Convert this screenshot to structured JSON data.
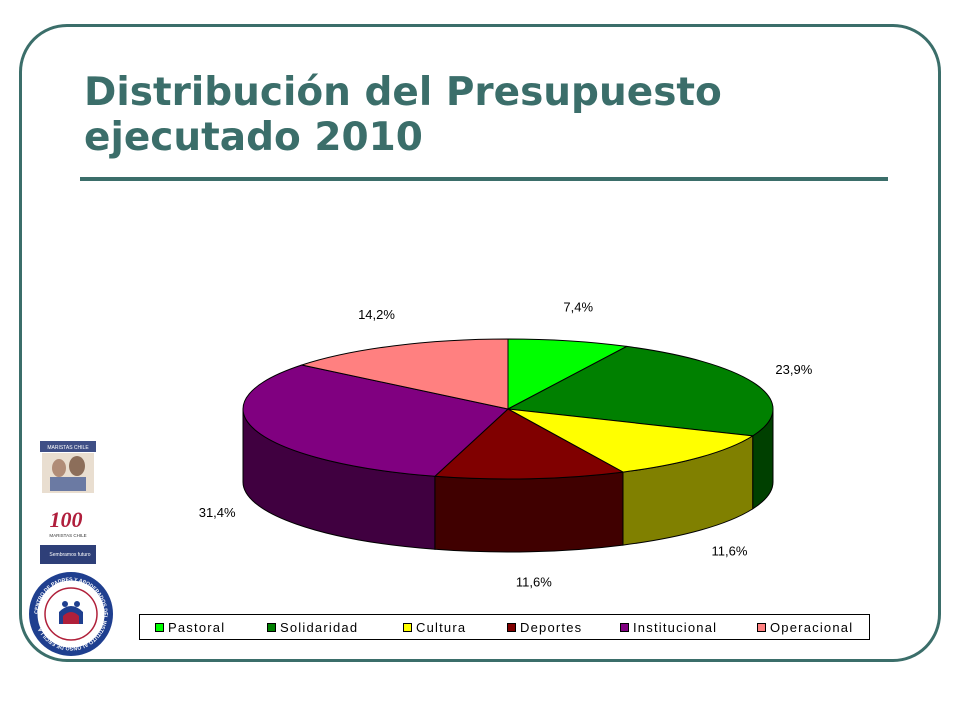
{
  "slide": {
    "title": "Distribución del Presupuesto\nejecutado 2010",
    "logo_text": [
      "MARISTAS CHILE",
      "100",
      "MARISTAS CHILE",
      "Sembramos futuro"
    ],
    "seal_text": "CENTRO DE PADRES Y APODERADOS DEL INSTITUTO ALONSO DE ERCILLA"
  },
  "chart_data": {
    "type": "pie",
    "title": "",
    "three_d": true,
    "legend_position": "bottom",
    "slices": [
      {
        "label": "Pastoral",
        "value": 7.4,
        "value_label": "7,4%",
        "color": "#00ff00"
      },
      {
        "label": "Solidaridad",
        "value": 23.9,
        "value_label": "23,9%",
        "color": "#008000"
      },
      {
        "label": "Cultura",
        "value": 11.6,
        "value_label": "11,6%",
        "color": "#ffff00"
      },
      {
        "label": "Deportes",
        "value": 11.6,
        "value_label": "11,6%",
        "color": "#800000"
      },
      {
        "label": "Institucional",
        "value": 31.4,
        "value_label": "31,4%",
        "color": "#800080"
      },
      {
        "label": "Operacional",
        "value": 14.2,
        "value_label": "14,2%",
        "color": "#ff8080"
      }
    ]
  }
}
